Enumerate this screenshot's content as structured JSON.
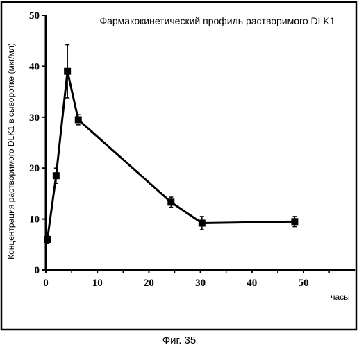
{
  "chart_data": {
    "type": "line",
    "title": "Фармакокинетический профиль растворимого DLK1",
    "xlabel": "часы",
    "ylabel": "Концентрация растворимого DLK1 в сыворотке (мкг/мл)",
    "xlim": [
      0,
      60
    ],
    "ylim": [
      0,
      50
    ],
    "x_ticks": [
      "0",
      "10",
      "20",
      "30",
      "40",
      "50"
    ],
    "y_ticks": [
      "0",
      "10",
      "20",
      "30",
      "40",
      "50"
    ],
    "legend": "none",
    "grid": false,
    "series": [
      {
        "x": [
          0.3,
          2,
          4.2,
          6.3,
          24.3,
          30.3,
          48.3
        ],
        "y": [
          6,
          18.5,
          39,
          29.5,
          13.3,
          9.2,
          9.5
        ],
        "error": [
          0.8,
          1.5,
          5.2,
          1.0,
          1.0,
          1.3,
          1.0
        ],
        "color": "#000000"
      }
    ]
  },
  "caption": "Фиг. 35"
}
